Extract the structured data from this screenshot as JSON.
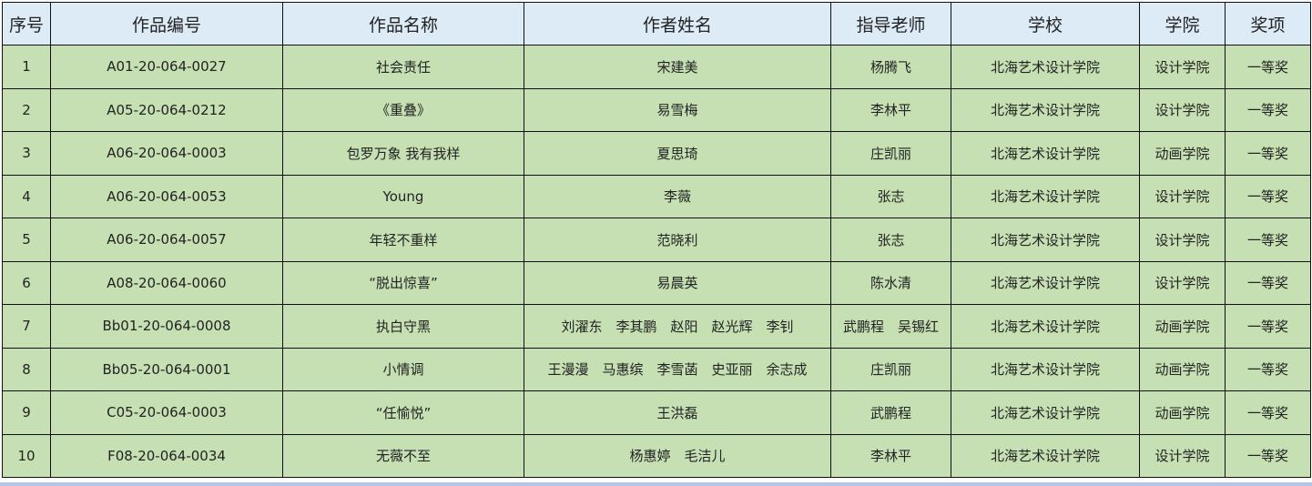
{
  "headers": [
    "序号",
    "作品编号",
    "作品名称",
    "作者姓名",
    "指导老师",
    "学校",
    "学院",
    "奖项"
  ],
  "rows": [
    [
      "1",
      "A01-20-064-0027",
      "社会责任",
      "宋建美",
      "杨腾飞",
      "北海艺术设计学院",
      "设计学院",
      "一等奖"
    ],
    [
      "2",
      "A05-20-064-0212",
      "《重叠》",
      "易雪梅",
      "李林平",
      "北海艺术设计学院",
      "设计学院",
      "一等奖"
    ],
    [
      "3",
      "A06-20-064-0003",
      "包罗万象 我有我样",
      "夏思琦",
      "庄凯丽",
      "北海艺术设计学院",
      "动画学院",
      "一等奖"
    ],
    [
      "4",
      "A06-20-064-0053",
      "Young",
      "李薇",
      "张志",
      "北海艺术设计学院",
      "设计学院",
      "一等奖"
    ],
    [
      "5",
      "A06-20-064-0057",
      "年轻不重样",
      "范晓利",
      "张志",
      "北海艺术设计学院",
      "设计学院",
      "一等奖"
    ],
    [
      "6",
      "A08-20-064-0060",
      "“脱出惊喜”",
      "易晨英",
      "陈水清",
      "北海艺术设计学院",
      "设计学院",
      "一等奖"
    ],
    [
      "7",
      "Bb01-20-064-0008",
      "执白守黑",
      "刘濯东　李其鹏　赵阳　赵光辉　李钊",
      "武鹏程　吴锡红",
      "北海艺术设计学院",
      "动画学院",
      "一等奖"
    ],
    [
      "8",
      "Bb05-20-064-0001",
      "小情调",
      "王漫漫　马惠缤　李雪菡　史亚丽　余志成",
      "庄凯丽",
      "北海艺术设计学院",
      "动画学院",
      "一等奖"
    ],
    [
      "9",
      "C05-20-064-0003",
      "“任愉悦”",
      "王洪磊",
      "武鹏程",
      "北海艺术设计学院",
      "动画学院",
      "一等奖"
    ],
    [
      "10",
      "F08-20-064-0034",
      "无薇不至",
      "杨惠婷　毛洁儿",
      "李林平",
      "北海艺术设计学院",
      "设计学院",
      "一等奖"
    ]
  ],
  "colors": {
    "header_bg": "#ddebf7",
    "row_bg": "#c6e0b4",
    "border": "#111111"
  }
}
